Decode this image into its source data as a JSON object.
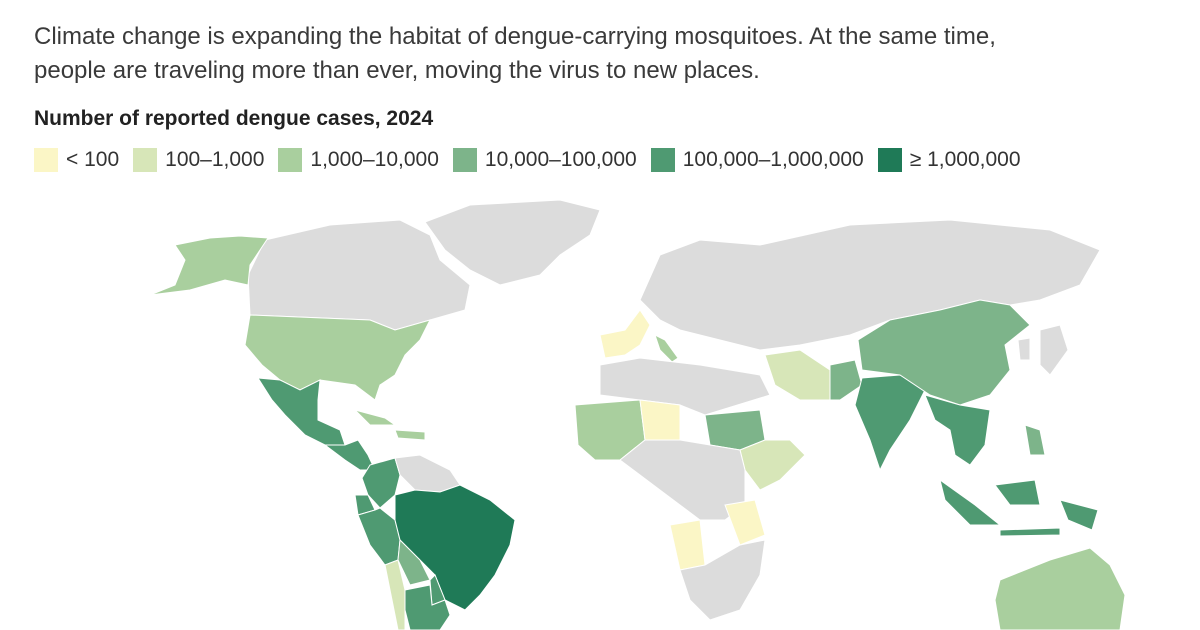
{
  "intro": {
    "line1": "Climate change is expanding the habitat of dengue-carrying mosquitoes. At the same time,",
    "line2": "people are traveling more than ever, moving the virus to new places."
  },
  "map": {
    "title": "Number of reported dengue cases, 2024",
    "legend": [
      {
        "label": "< 100",
        "color": "#fbf6c6"
      },
      {
        "label": "100–1,000",
        "color": "#d7e6b8"
      },
      {
        "label": "1,000–10,000",
        "color": "#a9cf9e"
      },
      {
        "label": "10,000–100,000",
        "color": "#7db48a"
      },
      {
        "label": "100,000–1,000,000",
        "color": "#4f9a72"
      },
      {
        "label": "≥ 1,000,000",
        "color": "#1f7a57"
      }
    ],
    "no_data_color": "#dcdcdc",
    "regions": [
      {
        "name": "Greenland",
        "color": "#dcdcdc"
      },
      {
        "name": "Canada",
        "color": "#dcdcdc"
      },
      {
        "name": "Alaska",
        "color": "#a9cf9e"
      },
      {
        "name": "United States",
        "color": "#a9cf9e"
      },
      {
        "name": "Mexico",
        "color": "#4f9a72"
      },
      {
        "name": "Central America",
        "color": "#4f9a72"
      },
      {
        "name": "Caribbean",
        "color": "#a9cf9e"
      },
      {
        "name": "Colombia",
        "color": "#4f9a72"
      },
      {
        "name": "Venezuela and Guianas",
        "color": "#dcdcdc"
      },
      {
        "name": "Ecuador",
        "color": "#4f9a72"
      },
      {
        "name": "Peru",
        "color": "#4f9a72"
      },
      {
        "name": "Brazil",
        "color": "#1f7a57"
      },
      {
        "name": "Bolivia",
        "color": "#7db48a"
      },
      {
        "name": "Paraguay",
        "color": "#4f9a72"
      },
      {
        "name": "Argentina",
        "color": "#4f9a72"
      },
      {
        "name": "Chile",
        "color": "#d7e6b8"
      },
      {
        "name": "Iberia and France",
        "color": "#fbf6c6"
      },
      {
        "name": "Italy",
        "color": "#a9cf9e"
      },
      {
        "name": "Europe and Russia",
        "color": "#dcdcdc"
      },
      {
        "name": "North Africa",
        "color": "#dcdcdc"
      },
      {
        "name": "West Africa",
        "color": "#a9cf9e"
      },
      {
        "name": "Niger",
        "color": "#fbf6c6"
      },
      {
        "name": "Sudan",
        "color": "#7db48a"
      },
      {
        "name": "Ethiopia",
        "color": "#d7e6b8"
      },
      {
        "name": "Central Africa",
        "color": "#dcdcdc"
      },
      {
        "name": "Angola",
        "color": "#fbf6c6"
      },
      {
        "name": "Tanzania",
        "color": "#fbf6c6"
      },
      {
        "name": "Southern Africa",
        "color": "#dcdcdc"
      },
      {
        "name": "Middle East",
        "color": "#d7e6b8"
      },
      {
        "name": "Pakistan",
        "color": "#7db48a"
      },
      {
        "name": "India",
        "color": "#4f9a72"
      },
      {
        "name": "China",
        "color": "#7db48a"
      },
      {
        "name": "Southeast Asia",
        "color": "#4f9a72"
      },
      {
        "name": "Indonesia",
        "color": "#4f9a72"
      },
      {
        "name": "Philippines",
        "color": "#7db48a"
      },
      {
        "name": "Australia",
        "color": "#a9cf9e"
      },
      {
        "name": "Japan and Korea",
        "color": "#dcdcdc"
      }
    ]
  }
}
